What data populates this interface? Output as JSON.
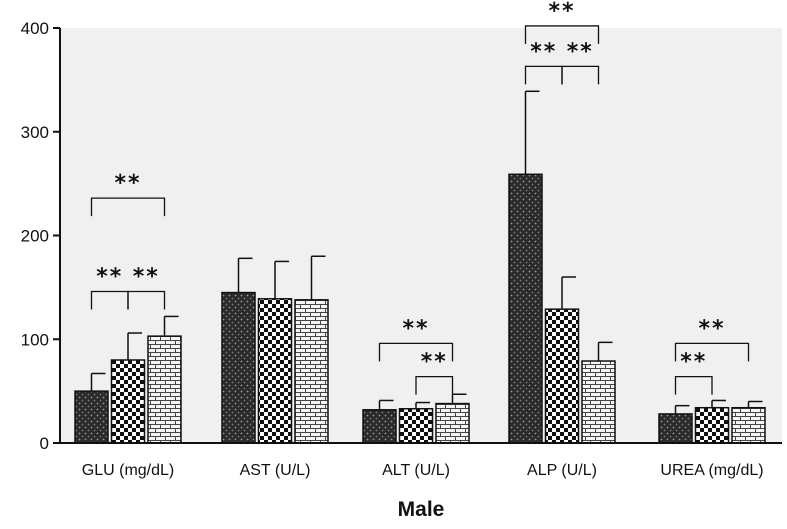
{
  "chart_data": {
    "type": "bar",
    "title": "",
    "xlabel": "Male",
    "ylabel": "",
    "ylim": [
      0,
      400
    ],
    "yticks": [
      0,
      100,
      200,
      300,
      400
    ],
    "grid": false,
    "categories": [
      "GLU (mg/dL)",
      "AST (U/L)",
      "ALT (U/L)",
      "ALP (U/L)",
      "UREA (mg/dL)"
    ],
    "series": [
      {
        "pattern": "dark-dots",
        "values": [
          50,
          145,
          32,
          259,
          28
        ],
        "errors": [
          17,
          33,
          9,
          80,
          8
        ]
      },
      {
        "pattern": "checker",
        "values": [
          80,
          139,
          33,
          129,
          34
        ],
        "errors": [
          26,
          36,
          6,
          31,
          7
        ]
      },
      {
        "pattern": "brick",
        "values": [
          103,
          138,
          38,
          79,
          34
        ],
        "errors": [
          19,
          42,
          9,
          18,
          6
        ]
      }
    ],
    "significance": [
      {
        "category": "GLU (mg/dL)",
        "from": 0,
        "to": 2,
        "level": 236,
        "label": "**"
      },
      {
        "category": "GLU (mg/dL)",
        "from": 0,
        "to": 1,
        "level": 146,
        "label": "**"
      },
      {
        "category": "GLU (mg/dL)",
        "from": 1,
        "to": 2,
        "level": 146,
        "label": "**"
      },
      {
        "category": "ALT (U/L)",
        "from": 0,
        "to": 2,
        "level": 96,
        "label": "**"
      },
      {
        "category": "ALT (U/L)",
        "from": 1,
        "to": 2,
        "level": 64,
        "label": "**"
      },
      {
        "category": "ALP (U/L)",
        "from": 0,
        "to": 2,
        "level": 402,
        "label": "**"
      },
      {
        "category": "ALP (U/L)",
        "from": 0,
        "to": 1,
        "level": 363,
        "label": "**"
      },
      {
        "category": "ALP (U/L)",
        "from": 1,
        "to": 2,
        "level": 363,
        "label": "**"
      },
      {
        "category": "UREA (mg/dL)",
        "from": 0,
        "to": 2,
        "level": 96,
        "label": "**"
      },
      {
        "category": "UREA (mg/dL)",
        "from": 0,
        "to": 1,
        "level": 64,
        "label": "**"
      }
    ]
  }
}
